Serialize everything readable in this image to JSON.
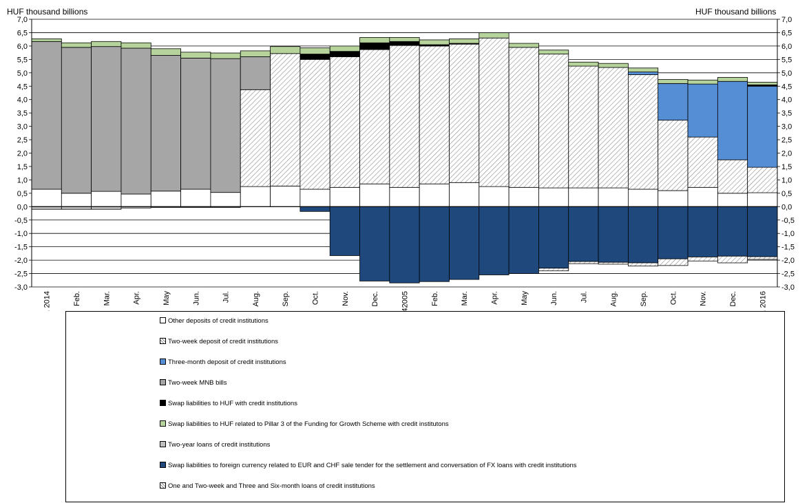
{
  "units": {
    "left": "HUF thousand billions",
    "right": "HUF thousand billions"
  },
  "colors": {
    "other_deposits": "#ffffff",
    "two_week_deposit": "#ffffff",
    "three_month_deposit": "#558ed5",
    "mnb_bills": "#a6a6a6",
    "swap_huf": "#000000",
    "swap_pillar3": "#b5d39a",
    "two_year_loans": "#bfbfbf",
    "swap_fx": "#1f497d",
    "loans": "#ffffff"
  },
  "chart_data": {
    "type": "bar",
    "stacked": true,
    "ylim": [
      -3.0,
      7.0
    ],
    "ytick_step": 0.5,
    "grid": true,
    "legend": "bottom",
    "categories": [
      "Jan. 2014",
      "Feb.",
      "Mar.",
      "Apr.",
      "May",
      "Jun.",
      "Jul.",
      "Aug.",
      "Sep.",
      "Oct.",
      "Nov.",
      "Dec.",
      "42005",
      "Feb.",
      "Mar.",
      "Apr.",
      "May",
      "Jun.",
      "Jul.",
      "Aug.",
      "Sep.",
      "Oct.",
      "Nov.",
      "Dec.",
      "Jan. 2016"
    ],
    "series": [
      {
        "name": "Other deposits of credit institutions",
        "key": "other_deposits",
        "pattern": "solid",
        "values": [
          0.65,
          0.5,
          0.57,
          0.47,
          0.58,
          0.65,
          0.53,
          0.75,
          0.77,
          0.65,
          0.72,
          0.85,
          0.72,
          0.85,
          0.9,
          0.75,
          0.72,
          0.7,
          0.7,
          0.7,
          0.65,
          0.6,
          0.72,
          0.5,
          0.52
        ]
      },
      {
        "name": "Two-week deposit of credit institutions",
        "key": "two_week_deposit",
        "pattern": "hatch",
        "values": [
          0,
          0,
          0,
          0,
          0,
          0,
          0,
          3.62,
          4.95,
          4.85,
          4.88,
          5.02,
          5.3,
          5.15,
          5.17,
          5.55,
          5.23,
          5.0,
          4.55,
          4.5,
          4.28,
          2.63,
          1.88,
          1.25,
          0.95
        ]
      },
      {
        "name": "Three-month deposit of credit institutions",
        "key": "three_month_deposit",
        "pattern": "solid",
        "values": [
          0,
          0,
          0,
          0,
          0,
          0,
          0,
          0,
          0,
          0,
          0,
          0,
          0,
          0,
          0,
          0,
          0,
          0,
          0,
          0,
          0.1,
          1.37,
          1.98,
          2.93,
          3.03
        ]
      },
      {
        "name": "Two-week MNB bills",
        "key": "mnb_bills",
        "pattern": "solid",
        "values": [
          5.52,
          5.45,
          5.41,
          5.45,
          5.07,
          4.9,
          5.0,
          1.23,
          0,
          0,
          0,
          0,
          0,
          0,
          0,
          0,
          0,
          0,
          0,
          0,
          0,
          0,
          0,
          0,
          0
        ]
      },
      {
        "name": "Swap liabilities  to HUF with  credit institutions",
        "key": "swap_huf",
        "pattern": "solid",
        "values": [
          0,
          0,
          0,
          0,
          0,
          0,
          0,
          0,
          0,
          0.2,
          0.2,
          0.25,
          0.15,
          0.05,
          0.03,
          0,
          0,
          0,
          0,
          0,
          0,
          0,
          0,
          0,
          0.05
        ]
      },
      {
        "name": "Swap liabilities  to HUF related to Pillar 3 of the Funding for Growth Scheme with credit institutons",
        "key": "swap_pillar3",
        "pattern": "solid",
        "values": [
          0.1,
          0.17,
          0.19,
          0.2,
          0.25,
          0.22,
          0.21,
          0.22,
          0.26,
          0.23,
          0.2,
          0.2,
          0.15,
          0.18,
          0.17,
          0.2,
          0.15,
          0.15,
          0.15,
          0.15,
          0.15,
          0.15,
          0.15,
          0.15,
          0.1
        ]
      },
      {
        "name": "Two-year loans  of credit institutions",
        "key": "two_year_loans",
        "pattern": "solid",
        "values": [
          -0.1,
          -0.1,
          -0.1,
          -0.05,
          -0.03,
          -0.03,
          -0.03,
          0,
          0,
          0,
          0,
          0,
          0,
          0,
          0,
          0,
          0,
          0,
          0,
          0,
          0,
          0,
          0,
          0,
          0
        ]
      },
      {
        "name": "Swap liabilities  to foreign currency related to EUR and CHF sale tender  for the settlement  and conversation of FX loans with  credit institutions",
        "key": "swap_fx",
        "pattern": "solid",
        "values": [
          0,
          0,
          0,
          0,
          0,
          0,
          0,
          0,
          0,
          -0.18,
          -1.83,
          -2.78,
          -2.85,
          -2.8,
          -2.72,
          -2.55,
          -2.5,
          -2.3,
          -2.05,
          -2.08,
          -2.1,
          -1.95,
          -1.88,
          -1.85,
          -1.87
        ]
      },
      {
        "name": "One and Two-week  and Three and Six-month  loans of credit institutions",
        "key": "loans",
        "pattern": "hatch",
        "values": [
          0,
          0,
          0,
          0,
          0,
          0,
          0,
          0,
          0,
          0,
          0,
          0,
          0,
          0,
          0,
          0,
          0,
          -0.1,
          -0.08,
          -0.07,
          -0.12,
          -0.25,
          -0.15,
          -0.25,
          -0.1
        ]
      }
    ]
  }
}
